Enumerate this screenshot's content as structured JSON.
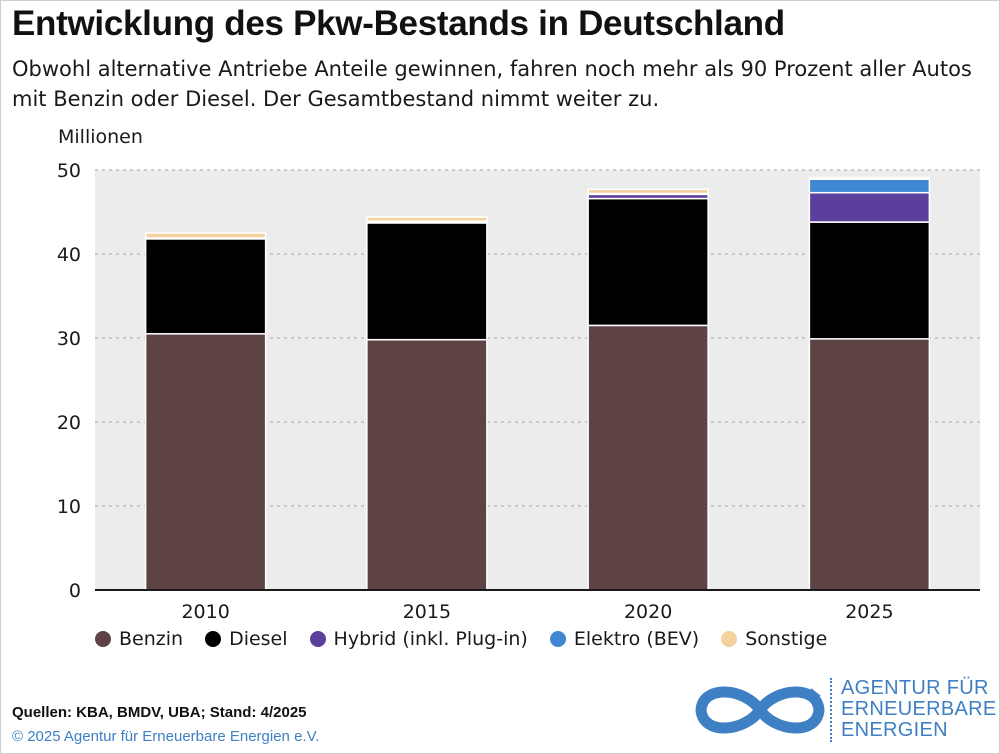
{
  "header": {
    "title": "Entwicklung des Pkw-Bestands in Deutschland",
    "subtitle": "Obwohl alternative Antriebe Anteile gewinnen, fahren noch mehr als 90 Prozent aller Autos mit Benzin oder Diesel. Der Gesamtbestand nimmt weiter zu."
  },
  "chart_data": {
    "type": "bar",
    "stacked": true,
    "unit_label": "Millionen",
    "categories": [
      "2010",
      "2015",
      "2020",
      "2025"
    ],
    "ylim": [
      0,
      50
    ],
    "yticks": [
      "0",
      "10",
      "20",
      "30",
      "40",
      "50"
    ],
    "grid": true,
    "legend_position": "bottom",
    "series": [
      {
        "name": "Benzin",
        "color": "#5e4345",
        "values": [
          30.5,
          29.8,
          31.5,
          29.9
        ]
      },
      {
        "name": "Diesel",
        "color": "#000000",
        "values": [
          11.3,
          13.9,
          15.1,
          13.9
        ]
      },
      {
        "name": "Hybrid (inkl. Plug-in)",
        "color": "#5b3f9c",
        "values": [
          0.1,
          0.1,
          0.5,
          3.5
        ]
      },
      {
        "name": "Elektro (BEV)",
        "color": "#3f87d0",
        "values": [
          0.0,
          0.1,
          0.1,
          1.6
        ]
      },
      {
        "name": "Sonstige",
        "color": "#f3d2a0",
        "values": [
          0.6,
          0.5,
          0.5,
          0.2
        ]
      }
    ]
  },
  "footer": {
    "sources": "Quellen: KBA, BMDV, UBA; Stand: 4/2025",
    "copyright": "© 2025 Agentur für Erneuerbare Energien e.V.",
    "logo_lines": [
      "AGENTUR FÜR",
      "ERNEUERBARE",
      "ENERGIEN"
    ]
  }
}
